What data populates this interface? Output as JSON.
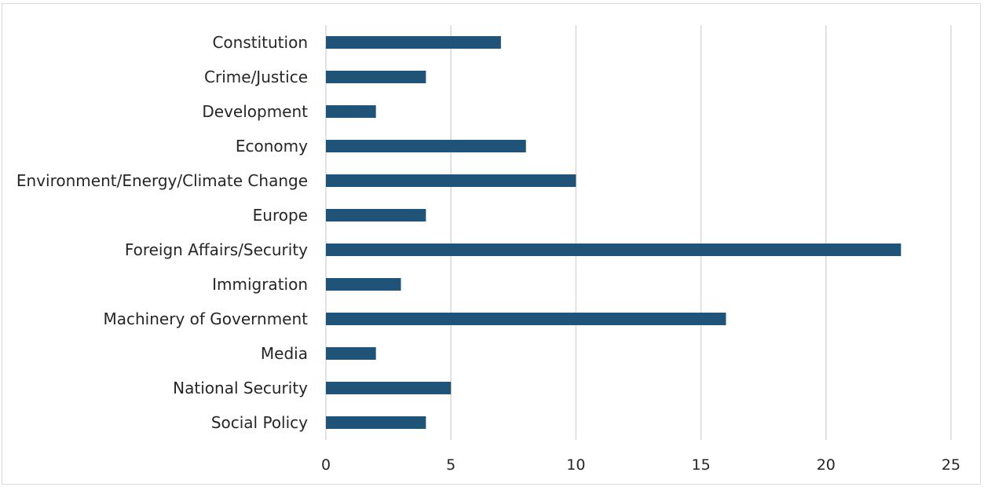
{
  "chart_data": {
    "type": "bar",
    "orientation": "horizontal",
    "categories": [
      "Constitution",
      "Crime/Justice",
      "Development",
      "Economy",
      "Environment/Energy/Climate Change",
      "Europe",
      "Foreign Affairs/Security",
      "Immigration",
      "Machinery of Government",
      "Media",
      "National Security",
      "Social Policy"
    ],
    "values": [
      7,
      4,
      2,
      8,
      10,
      4,
      23,
      3,
      16,
      2,
      5,
      4
    ],
    "xlim": [
      0,
      25
    ],
    "xticks": [
      0,
      5,
      10,
      15,
      20,
      25
    ],
    "grid": "vertical",
    "legend": "none",
    "title": "",
    "xlabel": "",
    "ylabel": "",
    "colors": {
      "bar": "#1f5378",
      "grid": "#d9d9d9",
      "text": "#262626"
    }
  }
}
